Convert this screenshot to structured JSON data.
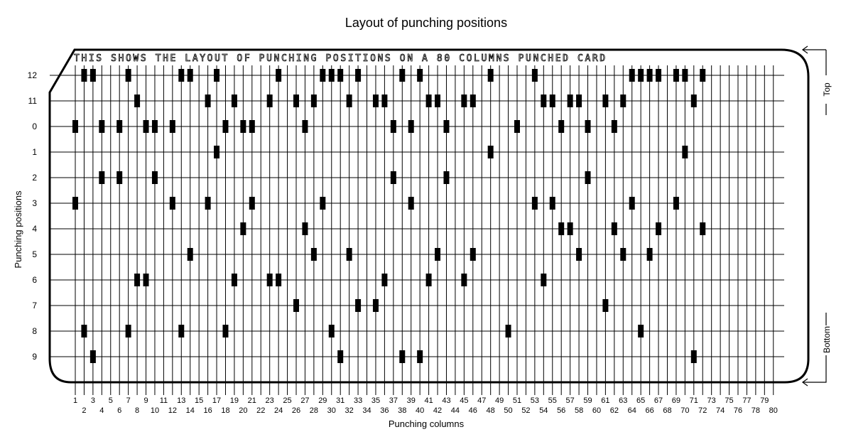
{
  "title": "Layout of punching positions",
  "card_text": "THIS SHOWS THE LAYOUT OF PUNCHING POSITIONS ON A 80 COLUMNS PUNCHED CARD",
  "ylabel": "Punching positions",
  "xlabel": "Punching columns",
  "top_label": "Top",
  "bottom_label": "Bottom",
  "rows": [
    "12",
    "11",
    "0",
    "1",
    "2",
    "3",
    "4",
    "5",
    "6",
    "7",
    "8",
    "9"
  ],
  "columns": [
    "1",
    "2",
    "3",
    "4",
    "5",
    "6",
    "7",
    "8",
    "9",
    "10",
    "11",
    "12",
    "13",
    "14",
    "15",
    "16",
    "17",
    "18",
    "19",
    "20",
    "21",
    "22",
    "23",
    "24",
    "25",
    "26",
    "27",
    "28",
    "29",
    "30",
    "31",
    "32",
    "33",
    "34",
    "35",
    "36",
    "37",
    "38",
    "39",
    "40",
    "41",
    "42",
    "43",
    "44",
    "45",
    "46",
    "47",
    "48",
    "49",
    "50",
    "51",
    "52",
    "53",
    "54",
    "55",
    "56",
    "57",
    "58",
    "59",
    "60",
    "61",
    "62",
    "63",
    "64",
    "65",
    "66",
    "67",
    "68",
    "69",
    "70",
    "71",
    "72",
    "73",
    "74",
    "75",
    "76",
    "77",
    "78",
    "79",
    "80"
  ],
  "punches": {
    "12": [
      2,
      3,
      7,
      13,
      14,
      17,
      24,
      29,
      30,
      31,
      33,
      38,
      40,
      48,
      53,
      64,
      65,
      66,
      67,
      69,
      70,
      72
    ],
    "11": [
      8,
      16,
      19,
      23,
      26,
      28,
      32,
      35,
      36,
      41,
      42,
      45,
      46,
      54,
      55,
      57,
      58,
      61,
      63,
      71
    ],
    "0": [
      1,
      4,
      6,
      9,
      10,
      12,
      18,
      20,
      21,
      27,
      37,
      39,
      43,
      51,
      56,
      59,
      62
    ],
    "1": [
      17,
      48,
      70
    ],
    "2": [
      4,
      6,
      10,
      37,
      43,
      59
    ],
    "3": [
      1,
      12,
      16,
      21,
      29,
      39,
      53,
      55,
      64,
      69
    ],
    "4": [
      20,
      27,
      56,
      57,
      62,
      67,
      72
    ],
    "5": [
      14,
      28,
      32,
      42,
      46,
      58,
      63,
      66
    ],
    "6": [
      8,
      9,
      19,
      23,
      24,
      36,
      41,
      45,
      54
    ],
    "7": [
      26,
      33,
      35,
      61
    ],
    "8": [
      2,
      7,
      13,
      18,
      30,
      50,
      65
    ],
    "9": [
      3,
      31,
      38,
      40,
      71
    ]
  }
}
